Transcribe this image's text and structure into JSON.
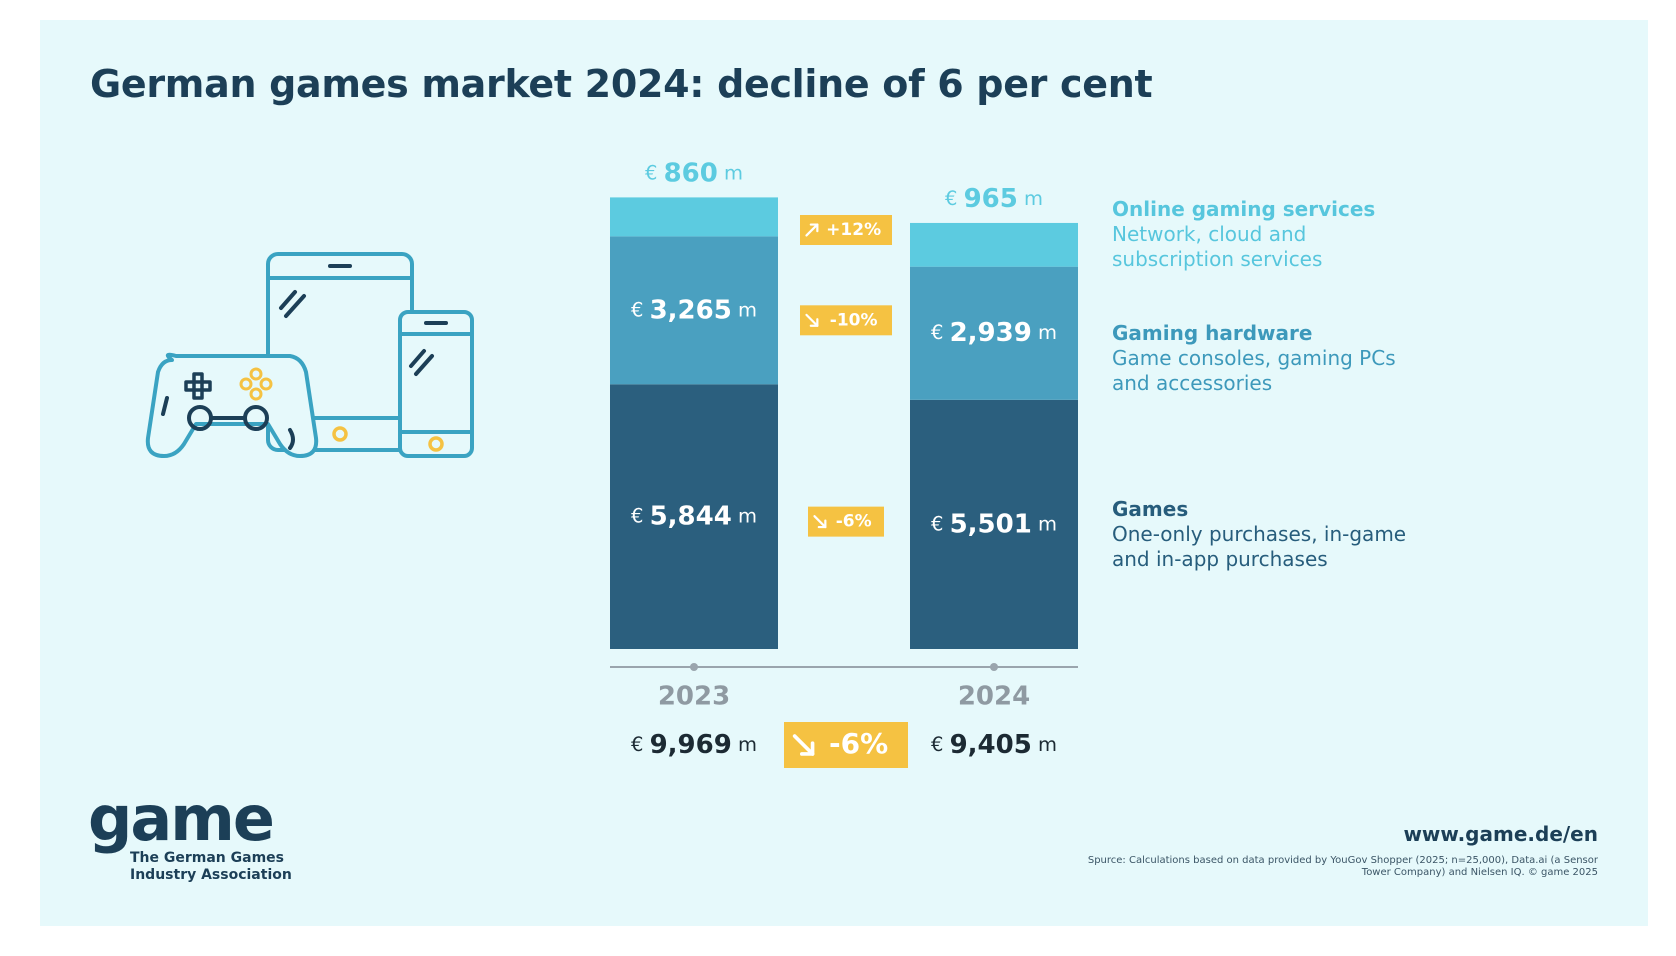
{
  "title": "German games market 2024: decline of 6 per cent",
  "chart_data": {
    "type": "bar",
    "stacked": true,
    "categories": [
      "2023",
      "2024"
    ],
    "unit_prefix": "€",
    "unit_suffix": "m",
    "series": [
      {
        "name": "Games",
        "values": [
          5844,
          5501
        ],
        "labels": [
          "5,844",
          "5,501"
        ],
        "color": "#2b5f7e",
        "change": "-6%"
      },
      {
        "name": "Gaming hardware",
        "values": [
          3265,
          2939
        ],
        "labels": [
          "3,265",
          "2,939"
        ],
        "color": "#4aa0c0",
        "change": "-10%"
      },
      {
        "name": "Online gaming services",
        "values": [
          860,
          965
        ],
        "labels": [
          "860",
          "965"
        ],
        "color": "#5ccbe0",
        "change": "+12%"
      }
    ],
    "totals": {
      "labels": [
        "9,969",
        "9,405"
      ],
      "change": "-6%"
    }
  },
  "legend": {
    "online": {
      "title": "Online gaming services",
      "desc": "Network, cloud and subscription services"
    },
    "hardware": {
      "title": "Gaming hardware",
      "desc": "Game consoles, gaming PCs and accessories"
    },
    "games": {
      "title": "Games",
      "desc": "One-only purchases, in-game and in-app purchases"
    }
  },
  "logo": {
    "word": "game",
    "subtitle": "The German Games\nIndustry Association"
  },
  "footer": {
    "url": "www.game.de/en",
    "source": "Spurce: Calculations based on data provided by YouGov Shopper (2025; n=25,000), Data.ai (a Sensor Tower Company) and Nielsen IQ. © game 2025"
  },
  "colors": {
    "background": "#e6f9fb",
    "title": "#1c3f57",
    "badge": "#f5c242",
    "axis": "#9aa5ad",
    "illustration": "#3aa3c2",
    "illustration_accent": "#f5c242"
  },
  "icons": [
    "gamepad-icon",
    "tablet-icon",
    "smartphone-icon",
    "arrow-up-right-icon",
    "arrow-down-right-icon"
  ]
}
